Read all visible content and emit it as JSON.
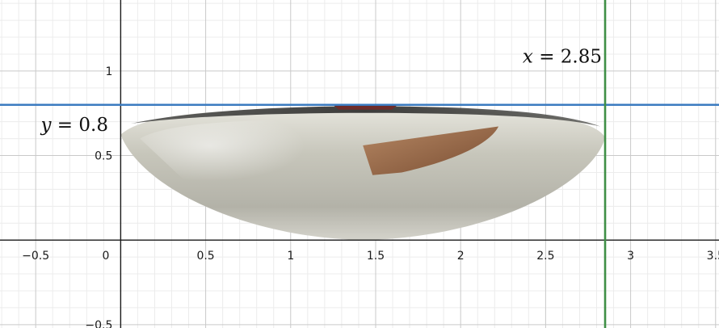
{
  "graph": {
    "xlim": [
      -0.71,
      3.52
    ],
    "ylim": [
      -0.52,
      1.42
    ],
    "grid": true,
    "x_ticks": [
      {
        "value": -0.5,
        "label": "−0.5"
      },
      {
        "value": 0.5,
        "label": "0.5"
      },
      {
        "value": 1,
        "label": "1"
      },
      {
        "value": 1.5,
        "label": "1.5"
      },
      {
        "value": 2,
        "label": "2"
      },
      {
        "value": 2.5,
        "label": "2.5"
      },
      {
        "value": 3,
        "label": "3"
      },
      {
        "value": 3.5,
        "label": "3.5"
      }
    ],
    "origin_label": "0",
    "y_ticks": [
      {
        "value": 1,
        "label": "1"
      },
      {
        "value": 0.5,
        "label": "0.5"
      },
      {
        "value": -0.5,
        "label": "−0.5"
      }
    ],
    "lines": [
      {
        "kind": "horizontal",
        "value": 0.8,
        "color": "#3b7bc0",
        "label_var": "y",
        "label_eq": " = ",
        "label_num": "0.8"
      },
      {
        "kind": "vertical",
        "value": 2.85,
        "color": "#3f8f46",
        "label_var": "x",
        "label_eq": " = ",
        "label_num": "2.85"
      }
    ],
    "image": {
      "description_icon": "bowl-photo-icon",
      "x_range": [
        0,
        2.85
      ],
      "y_range": [
        0,
        0.8
      ]
    }
  }
}
